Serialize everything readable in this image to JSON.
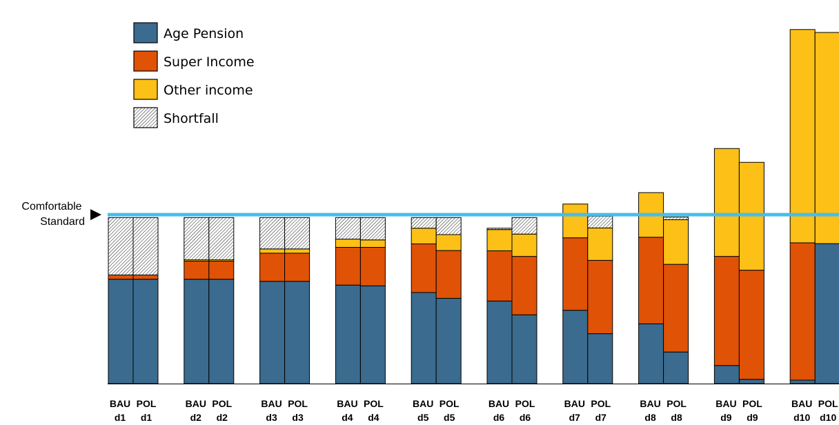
{
  "chart_data": {
    "type": "bar",
    "stacked": true,
    "grid": false,
    "legend_position": "top-left",
    "title": "",
    "xlabel": "",
    "ylabel": "",
    "ylim": [
      0,
      132
    ],
    "y_axis_visible": false,
    "categories": [
      {
        "group": "d1",
        "scenario": "BAU"
      },
      {
        "group": "d1",
        "scenario": "POL"
      },
      {
        "group": "d2",
        "scenario": "BAU"
      },
      {
        "group": "d2",
        "scenario": "POL"
      },
      {
        "group": "d3",
        "scenario": "BAU"
      },
      {
        "group": "d3",
        "scenario": "POL"
      },
      {
        "group": "d4",
        "scenario": "BAU"
      },
      {
        "group": "d4",
        "scenario": "POL"
      },
      {
        "group": "d5",
        "scenario": "BAU"
      },
      {
        "group": "d5",
        "scenario": "POL"
      },
      {
        "group": "d6",
        "scenario": "BAU"
      },
      {
        "group": "d6",
        "scenario": "POL"
      },
      {
        "group": "d7",
        "scenario": "BAU"
      },
      {
        "group": "d7",
        "scenario": "POL"
      },
      {
        "group": "d8",
        "scenario": "BAU"
      },
      {
        "group": "d8",
        "scenario": "POL"
      },
      {
        "group": "d9",
        "scenario": "BAU"
      },
      {
        "group": "d9",
        "scenario": "POL"
      },
      {
        "group": "d10",
        "scenario": "BAU"
      },
      {
        "group": "d10",
        "scenario": "POL"
      }
    ],
    "series": [
      {
        "name": "Age Pension",
        "color": "#3b6b8e",
        "pattern": "none",
        "values": [
          39.3,
          39.3,
          39.3,
          39.3,
          38.5,
          38.5,
          37.1,
          36.8,
          34.3,
          32.1,
          31.1,
          25.9,
          27.6,
          18.8,
          22.5,
          11.9,
          6.8,
          1.6,
          1.3,
          52.7
        ]
      },
      {
        "name": "Super Income",
        "color": "#e05206",
        "pattern": "none",
        "values": [
          1.6,
          1.6,
          6.8,
          6.8,
          10.6,
          10.6,
          14.2,
          14.5,
          18.3,
          18.0,
          18.9,
          22.0,
          27.3,
          27.6,
          32.6,
          33.0,
          41.1,
          41.1,
          51.7,
          0
        ]
      },
      {
        "name": "Other income",
        "color": "#fcc016",
        "pattern": "none",
        "values": [
          0,
          0,
          0.5,
          0.5,
          1.6,
          1.6,
          3.1,
          2.8,
          5.9,
          6.0,
          8.0,
          8.4,
          12.7,
          12.2,
          16.8,
          16.8,
          40.6,
          40.6,
          80.3,
          79.5
        ]
      },
      {
        "name": "Shortfall",
        "color": "#ffffff",
        "pattern": "diagonal-hatch",
        "values": [
          21.6,
          21.6,
          15.9,
          15.9,
          11.8,
          11.8,
          8.1,
          8.4,
          4.0,
          6.4,
          0.5,
          6.2,
          0,
          4.4,
          0,
          1.0,
          0,
          0,
          0,
          0
        ]
      }
    ],
    "reference_line": {
      "label_lines": [
        "Comfortable",
        "Standard"
      ],
      "value": 63.6,
      "color": "#46bdea"
    }
  }
}
